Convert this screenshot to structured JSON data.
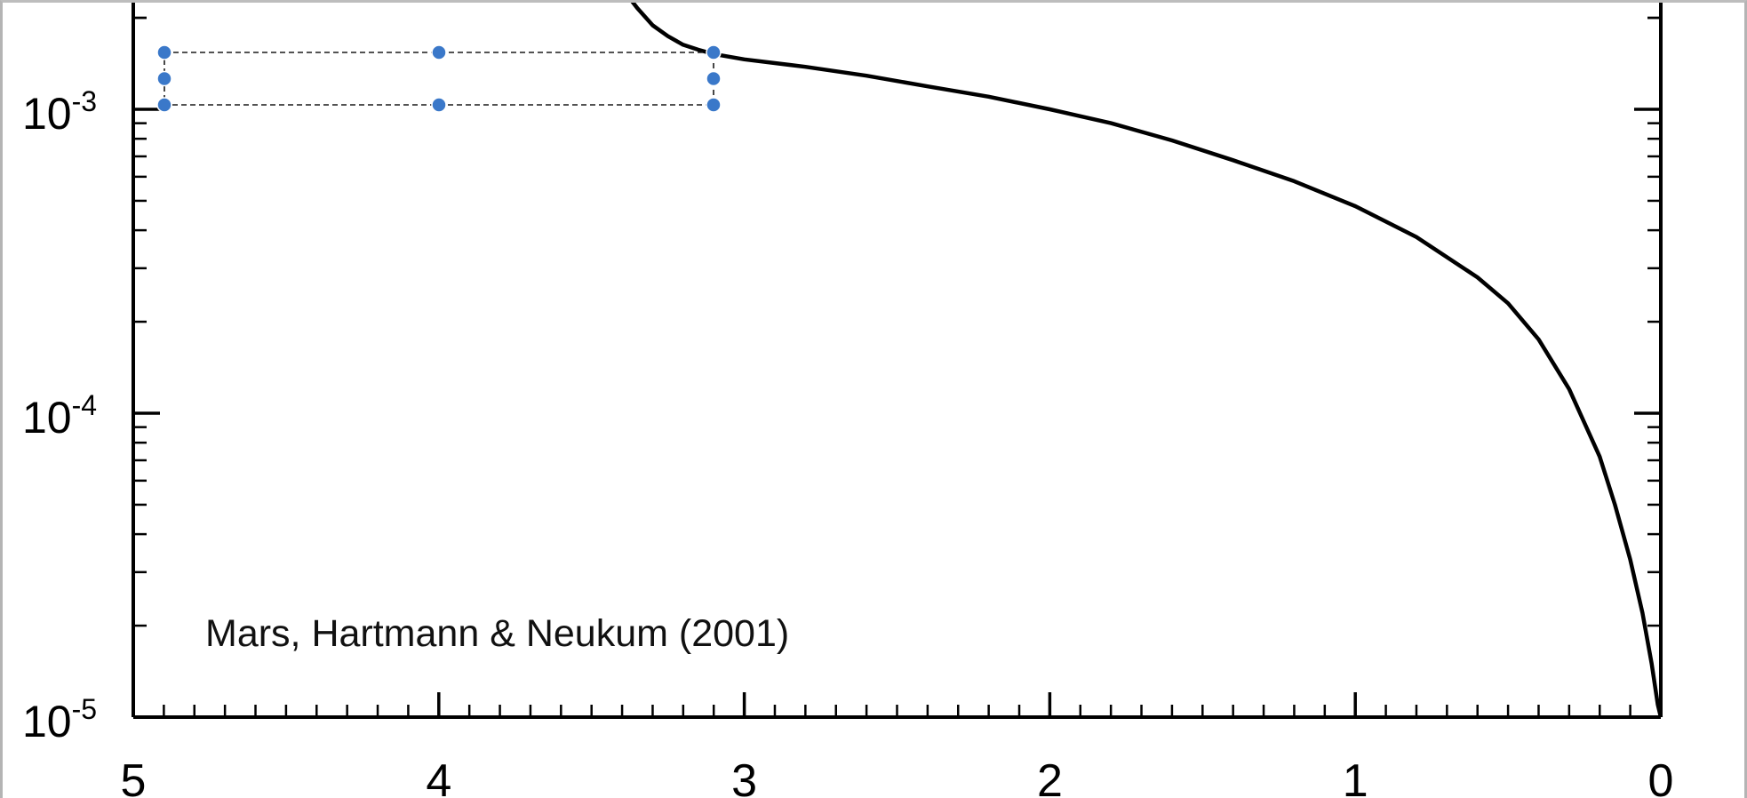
{
  "chart_data": {
    "type": "line",
    "y_scale": "log",
    "x_reversed": true,
    "xlim": [
      5,
      0
    ],
    "ylim": [
      1e-05,
      0.0025
    ],
    "x_ticks": [
      "5",
      "4",
      "3",
      "2",
      "1",
      "0"
    ],
    "y_ticks": [
      {
        "base": "10",
        "exp": "-3"
      },
      {
        "base": "10",
        "exp": "-4"
      },
      {
        "base": "10",
        "exp": "-5"
      }
    ],
    "annotation": "Mars, Hartmann & Neukum (2001)",
    "series": [
      {
        "color": "#000000",
        "x": [
          3.4,
          3.35,
          3.3,
          3.25,
          3.2,
          3.15,
          3.1,
          3.0,
          2.8,
          2.6,
          2.4,
          2.2,
          2.0,
          1.8,
          1.6,
          1.4,
          1.2,
          1.0,
          0.8,
          0.6,
          0.5,
          0.4,
          0.3,
          0.2,
          0.15,
          0.1,
          0.06,
          0.03,
          0.01,
          0.0
        ],
        "y": [
          0.0025,
          0.00215,
          0.00189,
          0.00174,
          0.00163,
          0.00157,
          0.00152,
          0.00146,
          0.00138,
          0.00129,
          0.00119,
          0.0011,
          0.001,
          0.0009,
          0.00079,
          0.00068,
          0.00058,
          0.00048,
          0.00038,
          0.00028,
          0.00023,
          0.000175,
          0.00012,
          7.2e-05,
          5e-05,
          3.3e-05,
          2.2e-05,
          1.5e-05,
          1.1e-05,
          1e-05
        ]
      }
    ]
  },
  "selection": {
    "handles": [
      "top-left",
      "top-middle",
      "top-right",
      "middle-left",
      "middle-right",
      "bottom-left",
      "bottom-middle",
      "bottom-right"
    ]
  }
}
